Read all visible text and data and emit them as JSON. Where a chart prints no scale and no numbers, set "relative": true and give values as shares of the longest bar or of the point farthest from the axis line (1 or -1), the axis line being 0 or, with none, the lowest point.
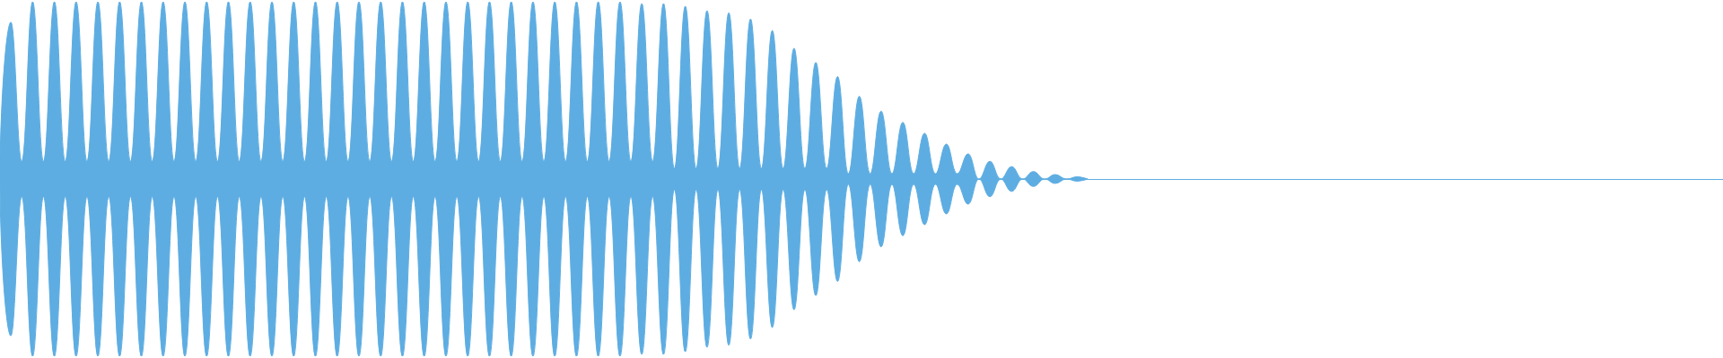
{
  "chart_data": {
    "type": "area",
    "relative": true,
    "color": "#5dade2",
    "categories": [
      null,
      null,
      null,
      null,
      null,
      null,
      null,
      null,
      null,
      null,
      null,
      null,
      null,
      null,
      null,
      null,
      null,
      null,
      null,
      null,
      null,
      null,
      null,
      null,
      null,
      null,
      null,
      null,
      null,
      null,
      null,
      null,
      null,
      null,
      null,
      null,
      null,
      null,
      null,
      null,
      null,
      null,
      null,
      null,
      null,
      null,
      null,
      null,
      null,
      null,
      null,
      null,
      null,
      null,
      null,
      null,
      null,
      null,
      null,
      null,
      null,
      null,
      null,
      null,
      null,
      null,
      null,
      null,
      null,
      null,
      null,
      null,
      null,
      null,
      null,
      null,
      null,
      null,
      null,
      null,
      null,
      null,
      null,
      null,
      null,
      null,
      null,
      null,
      null,
      null,
      null,
      null,
      null,
      null,
      null,
      null,
      null,
      null,
      null,
      null,
      null
    ],
    "values": [
      0,
      0.885,
      0.1,
      1,
      0.1,
      1,
      0.1,
      1,
      0.1,
      1,
      0.1,
      1,
      0.1,
      1,
      0.1,
      1,
      0.1,
      1,
      0.1,
      1,
      0.1,
      1,
      0.1,
      1,
      0.1,
      1,
      0.1,
      1,
      0.1,
      1,
      0.1,
      1,
      0.1,
      1,
      0.1,
      1,
      0.1,
      1,
      0.1,
      1,
      0.1,
      1,
      0.1,
      1,
      0.1,
      1,
      0.1,
      1,
      0.1,
      1,
      0.1,
      1,
      0.1,
      1,
      0.1,
      1,
      0.1,
      1,
      0.1,
      0.99,
      0.1,
      0.99,
      0.06,
      0.975,
      0.06,
      0.95,
      0.06,
      0.938,
      0.06,
      0.903,
      0.06,
      0.838,
      0.06,
      0.738,
      0.06,
      0.658,
      0.06,
      0.578,
      0.03,
      0.467,
      0.03,
      0.383,
      0.03,
      0.32,
      0.03,
      0.258,
      0.03,
      0.197,
      0.03,
      0.142,
      0,
      0.1,
      0,
      0.07,
      0,
      0.042,
      0,
      0.025,
      0,
      0.012,
      0
    ]
  }
}
